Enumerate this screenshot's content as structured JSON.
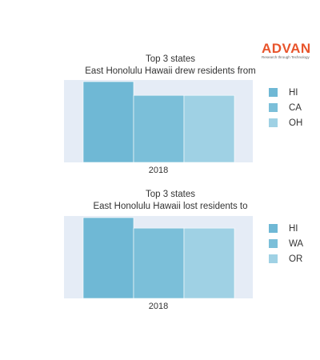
{
  "logo": {
    "word": "ADVAN",
    "tagline": "Research through Technology"
  },
  "colors": {
    "plot_bg": "#e5ecf6",
    "series": [
      "#6fb8d5",
      "#7bbfd9",
      "#9fd1e4"
    ]
  },
  "chart_data": [
    {
      "type": "bar",
      "title": "Top 3 states",
      "subtitle": "East Honolulu Hawaii drew residents from",
      "categories": [
        "2018"
      ],
      "series": [
        {
          "name": "HI",
          "values": [
            100
          ]
        },
        {
          "name": "CA",
          "values": [
            83
          ]
        },
        {
          "name": "OH",
          "values": [
            83
          ]
        }
      ],
      "ylim": [
        0,
        102
      ],
      "grid": true,
      "legend": "right"
    },
    {
      "type": "bar",
      "title": "Top 3 states",
      "subtitle": "East Honolulu Hawaii lost residents to",
      "categories": [
        "2018"
      ],
      "series": [
        {
          "name": "HI",
          "values": [
            100
          ]
        },
        {
          "name": "WA",
          "values": [
            87
          ]
        },
        {
          "name": "OR",
          "values": [
            87
          ]
        }
      ],
      "ylim": [
        0,
        102
      ],
      "grid": true,
      "legend": "right"
    }
  ]
}
